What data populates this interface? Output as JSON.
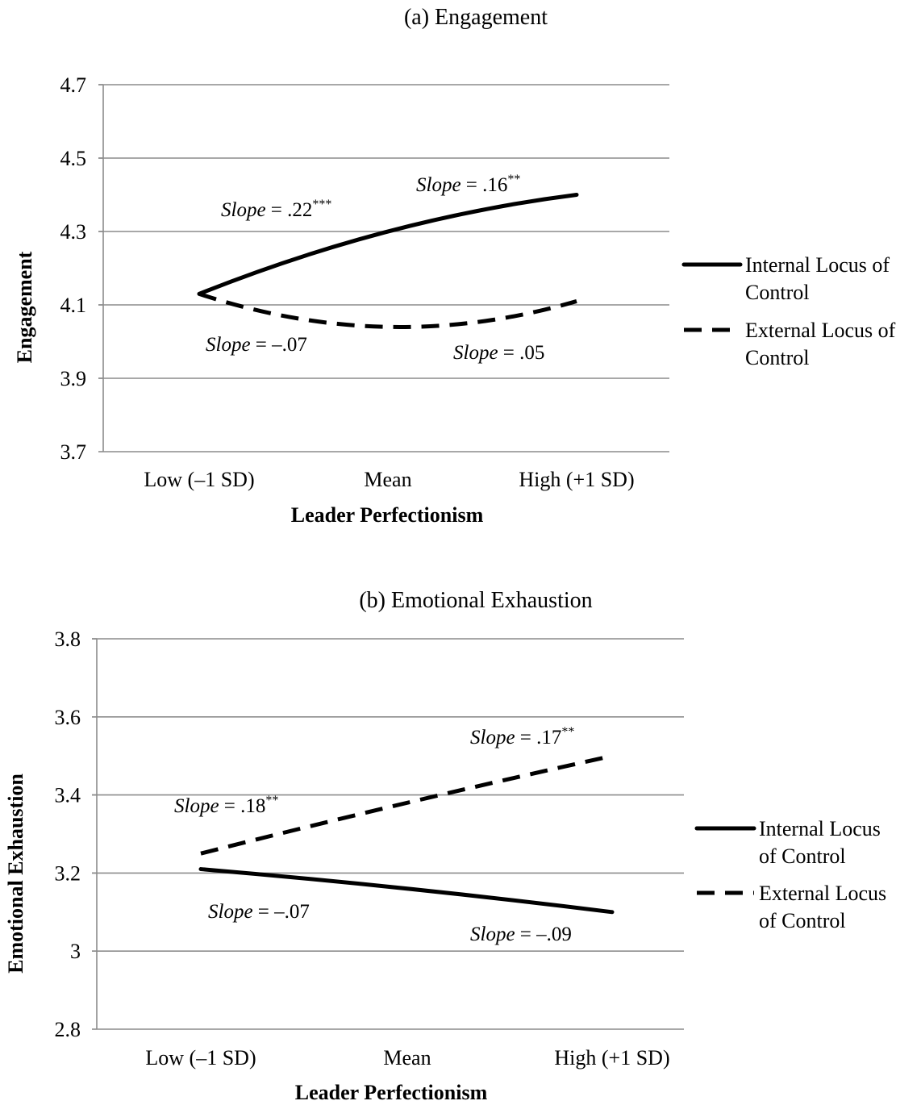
{
  "chart_data": [
    {
      "type": "line",
      "title": "(a)  Engagement",
      "xlabel": "Leader Perfectionism",
      "ylabel": "Engagement",
      "categories": [
        "Low (–1 SD)",
        "Mean",
        "High (+1 SD)"
      ],
      "yticks": [
        "4.7",
        "4.5",
        "4.3",
        "4.1",
        "3.9",
        "3.7"
      ],
      "ylim": [
        3.7,
        4.7
      ],
      "grid": true,
      "legend_position": "right",
      "series": [
        {
          "name": "Internal Locus of Control",
          "values": [
            4.13,
            4.3,
            4.4
          ],
          "style": "solid"
        },
        {
          "name": "External Locus of Control",
          "values": [
            4.13,
            4.04,
            4.11
          ],
          "style": "dashed"
        }
      ],
      "legend_lines": [
        [
          "Internal Locus of",
          "Control"
        ],
        [
          "External Locus of",
          "Control"
        ]
      ],
      "annotations": [
        {
          "label": "Slope",
          "value": " = .22",
          "sig": "***"
        },
        {
          "label": "Slope",
          "value": " = .16",
          "sig": "**"
        },
        {
          "label": "Slope",
          "value": " =  –.07",
          "sig": ""
        },
        {
          "label": "Slope",
          "value": " = .05",
          "sig": ""
        }
      ]
    },
    {
      "type": "line",
      "title": "(b) Emotional Exhaustion",
      "xlabel": "Leader Perfectionism",
      "ylabel": "Emotional Exhaustion",
      "categories": [
        "Low (–1 SD)",
        "Mean",
        "High (+1 SD)"
      ],
      "yticks": [
        "3.8",
        "3.6",
        "3.4",
        "3.2",
        "3",
        "2.8"
      ],
      "ylim": [
        2.8,
        3.8
      ],
      "grid": true,
      "legend_position": "right",
      "series": [
        {
          "name": "Internal Locus of Control",
          "values": [
            3.21,
            3.16,
            3.1
          ],
          "style": "solid"
        },
        {
          "name": "External Locus of Control",
          "values": [
            3.25,
            3.38,
            3.5
          ],
          "style": "dashed"
        }
      ],
      "legend_lines": [
        [
          "Internal Locus",
          "of Control"
        ],
        [
          "External Locus",
          "of Control"
        ]
      ],
      "annotations": [
        {
          "label": "Slope",
          "value": " = .18",
          "sig": "**"
        },
        {
          "label": "Slope",
          "value": " = .17",
          "sig": "**"
        },
        {
          "label": "Slope",
          "value": " = –.07",
          "sig": ""
        },
        {
          "label": "Slope",
          "value": " = –.09",
          "sig": ""
        }
      ]
    }
  ]
}
